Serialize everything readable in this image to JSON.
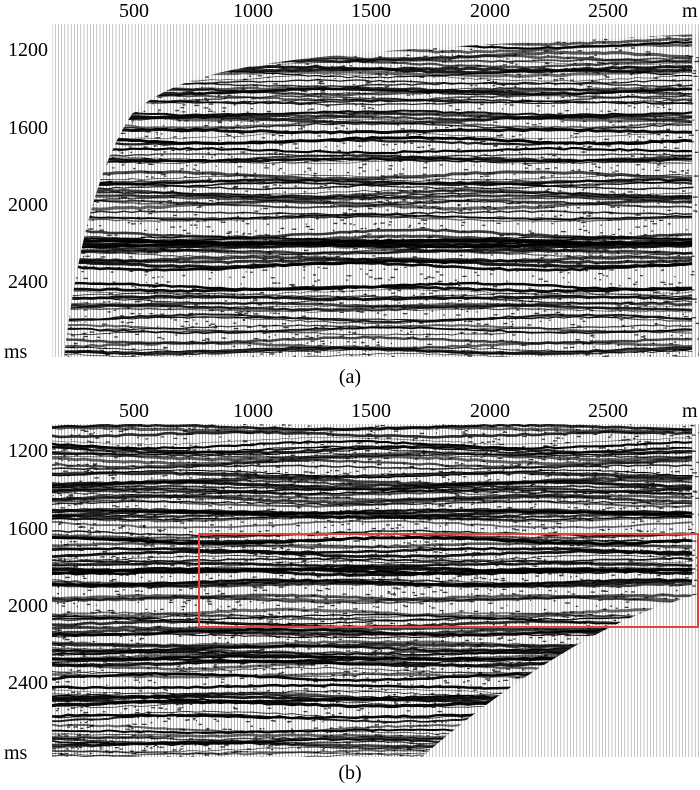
{
  "panels": [
    {
      "id": "a",
      "caption": "(a)",
      "x_ticks": [
        "500",
        "1000",
        "1500",
        "2000",
        "2500"
      ],
      "x_unit": "m",
      "y_ticks": [
        "1200",
        "1600",
        "2000",
        "2400"
      ],
      "y_unit": "ms"
    },
    {
      "id": "b",
      "caption": "(b)",
      "x_ticks": [
        "500",
        "1000",
        "1500",
        "2000",
        "2500"
      ],
      "x_unit": "m",
      "y_ticks": [
        "1200",
        "1600",
        "2000",
        "2400"
      ],
      "y_unit": "ms",
      "highlight_color": "#e8403a"
    }
  ],
  "colors": {
    "trace": "#000000",
    "background": "#ffffff",
    "highlight": "#e8403a"
  }
}
